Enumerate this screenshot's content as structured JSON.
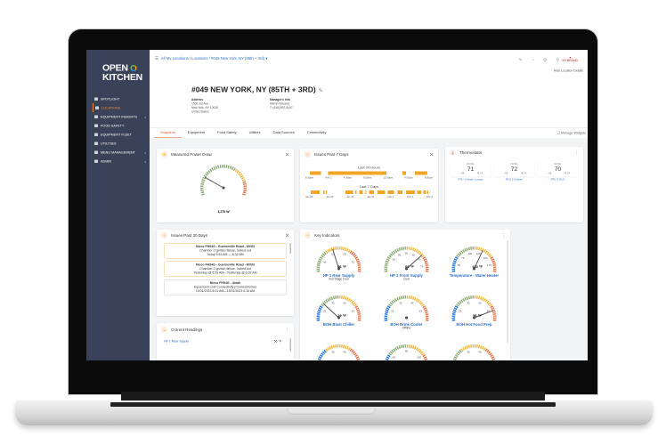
{
  "sidebar": {
    "logo": "OPEN KITCHEN",
    "items": [
      {
        "label": "Spotlight",
        "icon": "spotlight-icon"
      },
      {
        "label": "Locations",
        "icon": "location-pin-icon",
        "active": true
      },
      {
        "label": "Equipment Insights",
        "icon": "search-icon",
        "expandable": true
      },
      {
        "label": "Food Safety",
        "icon": "shield-icon"
      },
      {
        "label": "Equipment Fleet",
        "icon": "fleet-icon"
      },
      {
        "label": "Utilities",
        "icon": "bar-chart-icon"
      },
      {
        "label": "Menu Management",
        "icon": "grid-icon",
        "expandable": true
      },
      {
        "label": "Admin",
        "icon": "admin-icon",
        "expandable": true
      }
    ]
  },
  "header": {
    "breadcrumb": [
      "All My Locations",
      "Locations",
      "#049 New York, NY (85th + 3rd)"
    ],
    "title": "#049 NEW YORK, NY (85TH + 3RD)",
    "address": {
      "label": "Address",
      "lines": [
        "1500 3rd Ave",
        "New York, NY 10028",
        "United States"
      ]
    },
    "manager": {
      "label": "Manager's Info",
      "lines": [
        "Melvin Navarez",
        "T: (646) 657-5497"
      ]
    },
    "hide_label": "Hide Location Details",
    "brand": "MYBRAND"
  },
  "tabs": [
    "Snapshot",
    "Equipment",
    "Food Safety",
    "Utilities",
    "Data Sources",
    "Connectivity"
  ],
  "active_tab": "Snapshot",
  "manage_label": "Manage Widgets",
  "power": {
    "title": "Measured Power Draw",
    "value": "1,279 W",
    "fraction": 0.22
  },
  "issues7": {
    "title": "Issues Past 7 Days",
    "h24": {
      "label": "Last 24 Hours",
      "ticks": [
        "6:00pm",
        "Feb 2",
        "4:00am",
        "9:00am",
        "12:00pm",
        "4:00pm",
        "8:00pm"
      ],
      "bars": [
        [
          0.02,
          0.11
        ],
        [
          0.17,
          0.64
        ],
        [
          0.77,
          0.8
        ],
        [
          0.87,
          0.97
        ]
      ]
    },
    "d7": {
      "label": "Last 7 Days",
      "ticks": [
        "Jan 28",
        "Jan 29",
        "Jan 30",
        "Jan 31",
        "Feb 1",
        "Feb 2",
        "Feb 3"
      ],
      "bars": [
        [
          0.03,
          0.1
        ],
        [
          0.13,
          0.14
        ],
        [
          0.15,
          0.16
        ],
        [
          0.31,
          0.37
        ],
        [
          0.39,
          0.4
        ],
        [
          0.42,
          0.45
        ],
        [
          0.47,
          0.48
        ],
        [
          0.5,
          0.54
        ],
        [
          0.57,
          0.63
        ],
        [
          0.65,
          0.7
        ],
        [
          0.73,
          0.77
        ],
        [
          0.8,
          0.87
        ],
        [
          0.89,
          0.92
        ],
        [
          0.94,
          0.96
        ],
        [
          0.97,
          0.98
        ]
      ]
    }
  },
  "thermostats": {
    "title": "Thermostats",
    "items": [
      {
        "mode": "COOL",
        "value": "71",
        "heat": "68",
        "cool": "74",
        "name": "RTU 1 Inside Lounge"
      },
      {
        "mode": "COOL",
        "value": "72",
        "heat": "68",
        "cool": "74",
        "name": "RTU 2 Kitchen"
      },
      {
        "mode": "COOL",
        "value": "70",
        "heat": "68",
        "cool": "74",
        "name": "RTU 3 OLO"
      }
    ]
  },
  "issues30": {
    "title": "Issues Past 30 Days",
    "items": [
      {
        "title": "Nieco FH94G - Guerneville Road - MV63",
        "desc": "Chamber 2 ignition failure, locked out",
        "time": "Today 5:53 AM — 6:32 AM",
        "severity": "warning"
      },
      {
        "title": "Nieco FH94G - Guerneville Road - MV63",
        "desc": "Chamber 2 ignition failure, locked out",
        "time": "Yesterday @ 5:53 AM—Yesterday @ 6:32 AM",
        "severity": "warning"
      },
      {
        "title": "Nieco FH94G - Ukiah",
        "desc": "Equipment Lost Connectivity (ConnectHume)",
        "time": "10/01/2023 6:01 AM—10/01/2023 6:16 AM",
        "severity": "info"
      }
    ]
  },
  "readings": {
    "title": "Current Readings",
    "items": [
      {
        "name": "HP 1 Rear Supply",
        "value": "56 °F"
      }
    ]
  },
  "key": {
    "title": "Key Indicators",
    "gauges": [
      {
        "name": "HP 1 Rear Supply",
        "status": "2nd Stage Cool",
        "value": 56,
        "unit": "°F",
        "min": 35,
        "max": 85,
        "ticks": [
          45,
          55,
          65,
          75
        ],
        "zones": [
          "#8fae7a",
          "#f0b84a",
          "#e57a55"
        ]
      },
      {
        "name": "HP 2 Front Supply",
        "status": "Cool",
        "value": 69,
        "unit": "°F",
        "min": 40,
        "max": 80,
        "ticks": [
          50,
          55,
          60,
          65,
          70,
          75
        ],
        "zones": [
          "#8fae7a",
          "#8fae7a",
          "#f0b84a",
          "#e57a55"
        ]
      },
      {
        "name": "Temperature - Water Heater",
        "status": "",
        "value": 133,
        "unit": "°F",
        "min": 25,
        "max": 200,
        "ticks": [
          50,
          75,
          100,
          125,
          150,
          175
        ],
        "zones": [
          "#2d7ad6",
          "#8fae7a",
          "#f0b84a",
          "#e57a55"
        ]
      },
      {
        "name": "BOH Blast Chiller",
        "status": "",
        "value": 29,
        "unit": "°F",
        "min": 15,
        "max": 65,
        "ticks": [
          25,
          35,
          45,
          55
        ],
        "zones": [
          "#2d7ad6",
          "#8fae7a",
          "#f0b84a",
          "#e57a55"
        ]
      },
      {
        "name": "BOH Drink Cooler",
        "status": "Offline",
        "value": null,
        "unit": "",
        "min": 15,
        "max": 65,
        "ticks": [
          25,
          35,
          45,
          55
        ],
        "zones": [
          "#2d7ad6",
          "#8fae7a",
          "#f0b84a",
          "#e57a55"
        ]
      },
      {
        "name": "BOH Hot Food Prep",
        "status": "",
        "value": 56,
        "unit": "°F",
        "min": 15,
        "max": 65,
        "ticks": [
          25,
          35,
          45,
          55
        ],
        "zones": [
          "#2d7ad6",
          "#8fae7a",
          "#f0b84a",
          "#e57a55"
        ]
      },
      {
        "name": "",
        "status": "",
        "value": null,
        "unit": "",
        "min": 15,
        "max": 65,
        "ticks": [
          35,
          45
        ],
        "zones": [
          "#2d7ad6",
          "#f0b84a",
          "#e57a55"
        ]
      },
      {
        "name": "",
        "status": "",
        "value": null,
        "unit": "",
        "min": 40,
        "max": 120,
        "ticks": [
          60,
          80,
          100
        ],
        "zones": [
          "#2d7ad6",
          "#8fae7a",
          "#f0b84a",
          "#e57a55"
        ]
      },
      {
        "name": "",
        "status": "",
        "value": null,
        "unit": "",
        "min": 15,
        "max": 65,
        "ticks": [
          35,
          45
        ],
        "zones": [
          "#8fae7a",
          "#f0b84a",
          "#e57a55"
        ]
      }
    ]
  },
  "colors": {
    "sidebar": "#3a4259",
    "accent": "#e05a2b",
    "link": "#2d6ec9",
    "issue": "#f0a524"
  }
}
